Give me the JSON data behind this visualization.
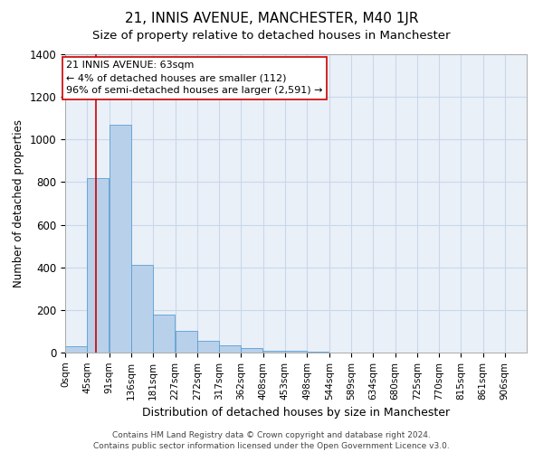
{
  "title": "21, INNIS AVENUE, MANCHESTER, M40 1JR",
  "subtitle": "Size of property relative to detached houses in Manchester",
  "xlabel": "Distribution of detached houses by size in Manchester",
  "ylabel": "Number of detached properties",
  "bin_edges": [
    0,
    45,
    91,
    136,
    181,
    227,
    272,
    317,
    362,
    408,
    453,
    498,
    544,
    589,
    634,
    680,
    725,
    770,
    815,
    861,
    906
  ],
  "bar_heights": [
    30,
    820,
    1070,
    410,
    180,
    100,
    55,
    35,
    20,
    10,
    10,
    5,
    0,
    0,
    0,
    0,
    0,
    0,
    0,
    0
  ],
  "bar_color": "#b8d0ea",
  "bar_edge_color": "#5a9fd4",
  "grid_color": "#c8d8ea",
  "background_color": "#eaf0f8",
  "vline_x": 63,
  "vline_color": "#cc0000",
  "ylim": [
    0,
    1400
  ],
  "yticks": [
    0,
    200,
    400,
    600,
    800,
    1000,
    1200,
    1400
  ],
  "annotation_text": "21 INNIS AVENUE: 63sqm\n← 4% of detached houses are smaller (112)\n96% of semi-detached houses are larger (2,591) →",
  "annotation_box_color": "#ffffff",
  "annotation_border_color": "#cc0000",
  "footer_text": "Contains HM Land Registry data © Crown copyright and database right 2024.\nContains public sector information licensed under the Open Government Licence v3.0.",
  "tick_labels": [
    "0sqm",
    "45sqm",
    "91sqm",
    "136sqm",
    "181sqm",
    "227sqm",
    "272sqm",
    "317sqm",
    "362sqm",
    "408sqm",
    "453sqm",
    "498sqm",
    "544sqm",
    "589sqm",
    "634sqm",
    "680sqm",
    "725sqm",
    "770sqm",
    "815sqm",
    "861sqm",
    "906sqm"
  ],
  "title_fontsize": 11,
  "subtitle_fontsize": 9.5,
  "xlabel_fontsize": 9,
  "ylabel_fontsize": 8.5,
  "tick_fontsize": 7.5,
  "annotation_fontsize": 8,
  "footer_fontsize": 6.5
}
